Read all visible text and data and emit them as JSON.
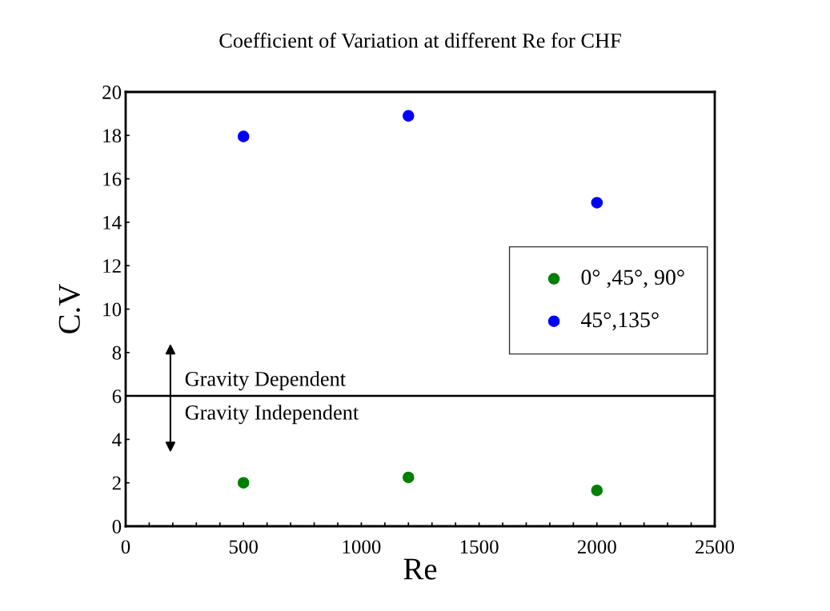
{
  "chart_data": {
    "type": "scatter",
    "title": "Coefficient of Variation at different Re for CHF",
    "xlabel": "Re",
    "ylabel": "C.V",
    "x": [
      500,
      1200,
      2000
    ],
    "series": [
      {
        "name": "0° ,45°, 90°",
        "color": "#008000",
        "values": [
          2.0,
          2.25,
          1.65
        ]
      },
      {
        "name": "45°,135°",
        "color": "#0000ff",
        "values": [
          17.95,
          18.9,
          14.9
        ]
      }
    ],
    "xlim": [
      0,
      2500
    ],
    "ylim": [
      0,
      20
    ],
    "xticks": [
      0,
      {
        "value": 100,
        "label": null
      },
      {
        "value": 200,
        "label": null
      },
      {
        "value": 300,
        "label": null
      },
      {
        "value": 400,
        "label": null
      },
      500,
      {
        "value": 600,
        "label": null
      },
      {
        "value": 700,
        "label": null
      },
      {
        "value": 800,
        "label": null
      },
      {
        "value": 900,
        "label": null
      },
      1000,
      {
        "value": 1100,
        "label": null
      },
      {
        "value": 1200,
        "label": null
      },
      {
        "value": 1300,
        "label": null
      },
      {
        "value": 1400,
        "label": null
      },
      1500,
      {
        "value": 1600,
        "label": null
      },
      {
        "value": 1700,
        "label": null
      },
      {
        "value": 1800,
        "label": null
      },
      {
        "value": 1900,
        "label": null
      },
      2000,
      {
        "value": 2100,
        "label": null
      },
      {
        "value": 2200,
        "label": null
      },
      {
        "value": 2300,
        "label": null
      },
      {
        "value": 2400,
        "label": null
      },
      2500
    ],
    "yticks": [
      0,
      2,
      4,
      6,
      8,
      10,
      12,
      14,
      16,
      18,
      20
    ],
    "ref_lines": [
      {
        "axis": "y",
        "value": 6,
        "color": "#000000"
      }
    ],
    "annotations": [
      "Gravity Dependent",
      "Gravity Independent"
    ],
    "marker": "circle",
    "grid": false,
    "legend": "right"
  }
}
